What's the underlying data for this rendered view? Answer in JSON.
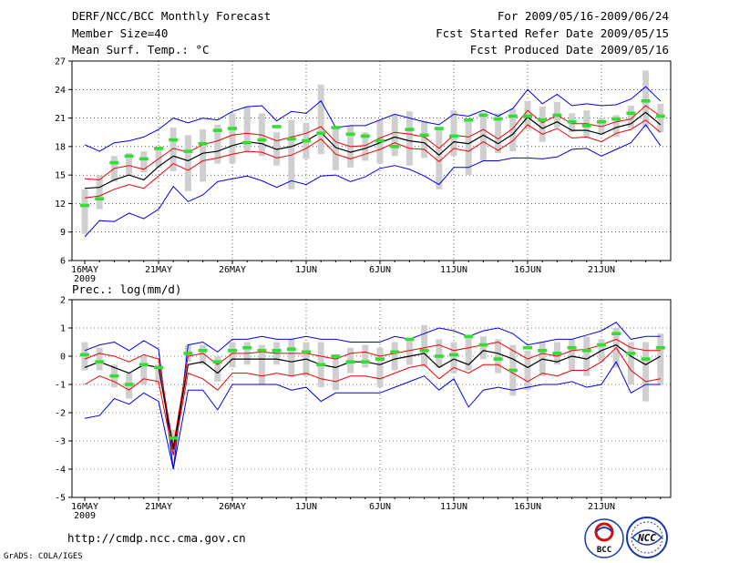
{
  "header": {
    "title": "DERF/NCC/BCC Monthly Forecast",
    "member_size": "Member Size=40",
    "variable": "Mean Surf. Temp.: °C",
    "period": "For 2009/05/16-2009/06/24",
    "started": "Fcst Started Refer Date 2009/05/15",
    "produced": "Fcst Produced Date 2009/05/16"
  },
  "footer": {
    "url": "http://cmdp.ncc.cma.gov.cn",
    "credit": "GrADS: COLA/IGES",
    "logo_bcc": "BCC",
    "logo_ncc": "NCC"
  },
  "colors": {
    "ensemble_max_min": "#0000ee",
    "ensemble_spread": "#ee0000",
    "ensemble_mean": "#000000",
    "member_range": "#cfcfcf",
    "median_marker": "#33dd33"
  },
  "chart_data": [
    {
      "type": "line",
      "title": "Mean Surf. Temp.: °C",
      "x_tick_labels": [
        "16MAY",
        "21MAY",
        "26MAY",
        "1JUN",
        "6JUN",
        "11JUN",
        "16JUN",
        "21JUN"
      ],
      "x_year_label": "2009",
      "ylim": [
        6,
        27
      ],
      "y_ticks": [
        6,
        9,
        12,
        15,
        18,
        21,
        24,
        27
      ],
      "days": 40,
      "series": [
        {
          "name": "max",
          "values": [
            18.2,
            17.5,
            18.4,
            18.6,
            19.0,
            19.8,
            21.0,
            20.5,
            21.0,
            20.8,
            21.7,
            22.2,
            22.3,
            20.7,
            21.7,
            21.5,
            22.8,
            20.0,
            20.2,
            20.2,
            20.8,
            21.4,
            21.0,
            20.6,
            20.3,
            21.4,
            21.2,
            21.8,
            21.2,
            22.0,
            24.0,
            22.5,
            23.5,
            22.3,
            22.5,
            22.3,
            22.4,
            23.0,
            24.3,
            22.8
          ]
        },
        {
          "name": "upper",
          "values": [
            14.6,
            14.5,
            15.7,
            16.0,
            15.6,
            16.7,
            17.8,
            17.4,
            18.2,
            18.6,
            19.2,
            19.4,
            19.2,
            18.6,
            19.0,
            19.4,
            20.1,
            18.5,
            18.0,
            18.1,
            18.9,
            19.5,
            19.3,
            19.0,
            17.8,
            19.2,
            19.0,
            19.8,
            18.8,
            19.9,
            21.8,
            20.5,
            21.3,
            20.4,
            20.4,
            20.1,
            20.6,
            20.9,
            22.3,
            21.2
          ]
        },
        {
          "name": "mean",
          "values": [
            13.6,
            13.7,
            14.5,
            15.0,
            14.5,
            15.9,
            17.0,
            16.5,
            17.3,
            17.5,
            18.1,
            18.5,
            18.3,
            17.7,
            18.0,
            18.6,
            19.5,
            17.9,
            17.4,
            17.8,
            18.4,
            19.0,
            18.6,
            18.4,
            17.1,
            18.5,
            18.3,
            19.2,
            18.3,
            19.3,
            21.1,
            19.9,
            20.6,
            19.7,
            19.7,
            19.3,
            20.0,
            20.4,
            21.6,
            20.3
          ]
        },
        {
          "name": "lower",
          "values": [
            12.6,
            12.8,
            13.5,
            14.0,
            13.6,
            14.9,
            16.2,
            15.5,
            16.5,
            16.8,
            17.2,
            17.5,
            17.4,
            16.8,
            17.1,
            17.8,
            18.8,
            17.2,
            16.7,
            17.2,
            17.7,
            18.4,
            17.8,
            17.7,
            16.4,
            17.8,
            17.5,
            18.5,
            17.6,
            18.6,
            20.3,
            19.3,
            19.9,
            18.9,
            19.0,
            18.5,
            19.4,
            19.8,
            20.8,
            19.5
          ]
        },
        {
          "name": "min",
          "values": [
            8.5,
            10.2,
            10.1,
            11.0,
            10.4,
            11.4,
            13.8,
            12.2,
            12.9,
            14.3,
            14.6,
            14.9,
            14.4,
            13.7,
            14.4,
            14.0,
            14.9,
            15.0,
            14.3,
            14.8,
            15.7,
            16.0,
            15.6,
            14.9,
            14.0,
            15.8,
            15.8,
            16.5,
            16.5,
            16.8,
            16.8,
            16.7,
            16.9,
            17.7,
            17.8,
            17.0,
            17.7,
            18.4,
            20.3,
            18.1
          ]
        },
        {
          "name": "member_range_high",
          "values": [
            13.5,
            15.0,
            17.0,
            17.3,
            17.5,
            18.0,
            20.0,
            19.2,
            19.8,
            20.3,
            21.5,
            22.2,
            21.5,
            19.5,
            20.8,
            20.5,
            24.5,
            20.0,
            20.2,
            19.5,
            20.8,
            21.4,
            21.7,
            20.7,
            20.0,
            21.8,
            20.8,
            21.6,
            21.5,
            22.0,
            22.8,
            22.2,
            22.7,
            21.5,
            21.8,
            21.0,
            21.3,
            22.3,
            26.0,
            22.5
          ]
        },
        {
          "name": "member_range_low",
          "values": [
            8.8,
            11.4,
            14.3,
            15.0,
            15.3,
            15.8,
            15.4,
            13.3,
            14.3,
            16.2,
            16.2,
            17.5,
            17.0,
            16.0,
            13.5,
            16.7,
            17.2,
            15.5,
            15.8,
            16.5,
            16.2,
            17.0,
            16.0,
            16.8,
            13.5,
            17.0,
            15.0,
            16.5,
            17.3,
            17.5,
            19.8,
            18.5,
            20.0,
            19.5,
            19.0,
            19.2,
            19.0,
            20.0,
            20.0,
            19.5
          ]
        },
        {
          "name": "median",
          "values": [
            11.8,
            12.5,
            16.3,
            17.0,
            16.7,
            17.8,
            18.7,
            17.5,
            18.3,
            19.7,
            19.9,
            18.4,
            18.7,
            20.1,
            18.8,
            18.6,
            19.4,
            20.0,
            19.3,
            19.1,
            18.6,
            18.0,
            19.8,
            19.2,
            19.9,
            19.1,
            20.8,
            21.3,
            20.9,
            21.2,
            21.2,
            20.8,
            21.3,
            20.6,
            20.2,
            20.6,
            20.9,
            21.5,
            22.8,
            21.2
          ]
        }
      ]
    },
    {
      "type": "line",
      "title": "Prec.: log(mm/d)",
      "x_tick_labels": [
        "16MAY",
        "21MAY",
        "26MAY",
        "1JUN",
        "6JUN",
        "11JUN",
        "16JUN",
        "21JUN"
      ],
      "x_year_label": "2009",
      "ylim": [
        -5,
        2
      ],
      "y_ticks": [
        -5,
        -4,
        -3,
        -2,
        -1,
        0,
        1,
        2
      ],
      "days": 40,
      "series": [
        {
          "name": "max",
          "values": [
            0.2,
            0.4,
            0.5,
            0.2,
            0.55,
            0.25,
            -4.0,
            0.4,
            0.5,
            0.15,
            0.6,
            0.6,
            0.7,
            0.6,
            0.6,
            0.7,
            0.6,
            0.6,
            0.5,
            0.5,
            0.5,
            0.7,
            0.6,
            0.8,
            1.0,
            0.9,
            0.7,
            0.9,
            1.0,
            0.8,
            0.4,
            0.5,
            0.6,
            0.6,
            0.75,
            0.9,
            1.2,
            0.6,
            0.7,
            0.7
          ]
        },
        {
          "name": "upper",
          "values": [
            -0.1,
            0.1,
            0.0,
            -0.2,
            0.05,
            -0.1,
            -3.2,
            0.0,
            0.1,
            -0.3,
            0.1,
            0.1,
            0.15,
            0.1,
            0.1,
            0.1,
            0.0,
            -0.1,
            0.1,
            0.15,
            0.0,
            0.1,
            0.2,
            0.3,
            0.4,
            0.2,
            0.3,
            0.4,
            0.5,
            0.2,
            -0.1,
            0.1,
            0.0,
            0.2,
            0.25,
            0.4,
            0.6,
            0.3,
            0.2,
            0.2
          ]
        },
        {
          "name": "mean",
          "values": [
            -0.4,
            -0.2,
            -0.4,
            -0.6,
            -0.3,
            -0.4,
            -3.3,
            -0.3,
            -0.2,
            -0.6,
            -0.1,
            -0.1,
            -0.1,
            -0.1,
            -0.2,
            -0.1,
            -0.3,
            -0.4,
            -0.2,
            -0.2,
            -0.3,
            -0.1,
            0.0,
            0.1,
            -0.4,
            -0.1,
            -0.3,
            0.2,
            0.1,
            -0.1,
            -0.4,
            -0.1,
            -0.2,
            0.0,
            -0.1,
            0.2,
            0.4,
            0.0,
            -0.3,
            0.0
          ]
        },
        {
          "name": "lower",
          "values": [
            -1.0,
            -0.7,
            -0.9,
            -1.2,
            -0.8,
            -0.9,
            -3.5,
            -0.6,
            -0.8,
            -1.2,
            -0.6,
            -0.6,
            -0.7,
            -0.6,
            -0.7,
            -0.6,
            -0.8,
            -0.9,
            -0.7,
            -0.7,
            -0.8,
            -0.6,
            -0.4,
            -0.3,
            -0.8,
            -0.4,
            -0.6,
            -0.3,
            -0.3,
            -0.6,
            -0.9,
            -0.6,
            -0.7,
            -0.5,
            -0.5,
            -0.2,
            0.3,
            -0.5,
            -0.9,
            -0.8
          ]
        },
        {
          "name": "min",
          "values": [
            -2.2,
            -2.1,
            -1.5,
            -1.7,
            -1.3,
            -1.6,
            -4.0,
            -1.2,
            -1.2,
            -1.9,
            -1.0,
            -1.0,
            -1.0,
            -1.0,
            -1.2,
            -1.1,
            -1.6,
            -1.3,
            -1.3,
            -1.3,
            -1.3,
            -1.1,
            -0.9,
            -0.7,
            -1.2,
            -0.8,
            -1.8,
            -1.2,
            -1.1,
            -1.2,
            -1.1,
            -1.0,
            -1.0,
            -0.9,
            -1.1,
            -1.0,
            -0.2,
            -1.3,
            -1.0,
            -1.0
          ]
        },
        {
          "name": "member_range_high",
          "values": [
            0.5,
            0.3,
            -0.3,
            -0.6,
            0.0,
            -0.3,
            -2.6,
            0.4,
            0.4,
            0.0,
            0.5,
            0.5,
            0.4,
            0.5,
            0.6,
            0.5,
            0.5,
            0.0,
            0.3,
            0.4,
            0.3,
            0.5,
            0.6,
            1.1,
            0.6,
            0.5,
            0.7,
            0.7,
            0.6,
            0.4,
            0.2,
            0.5,
            0.5,
            0.6,
            0.7,
            0.6,
            1.0,
            0.5,
            0.5,
            0.8
          ]
        },
        {
          "name": "member_range_low",
          "values": [
            -0.5,
            -0.5,
            -1.1,
            -1.5,
            -1.0,
            -1.0,
            -3.5,
            -0.2,
            -0.3,
            -0.9,
            -0.4,
            -0.3,
            -1.0,
            -0.3,
            -0.7,
            -0.7,
            -1.1,
            -1.2,
            -0.6,
            -0.4,
            -1.1,
            -0.5,
            -0.3,
            -0.4,
            -0.4,
            -0.6,
            -0.5,
            -0.1,
            -0.6,
            -1.4,
            -1.2,
            -0.7,
            -0.3,
            -0.5,
            -0.7,
            -0.2,
            -0.4,
            -1.0,
            -1.6,
            -1.0
          ]
        },
        {
          "name": "median",
          "values": [
            0.05,
            -0.2,
            -0.7,
            -1.0,
            -0.3,
            -0.4,
            -2.9,
            0.1,
            0.2,
            -0.2,
            0.2,
            0.3,
            0.2,
            0.2,
            0.25,
            0.15,
            -0.3,
            0.0,
            -0.2,
            -0.2,
            -0.1,
            0.15,
            0.6,
            0.2,
            0.0,
            0.05,
            0.7,
            0.4,
            -0.1,
            -0.5,
            0.3,
            0.2,
            0.1,
            0.3,
            0.2,
            0.4,
            0.8,
            0.1,
            -0.1,
            0.3
          ]
        }
      ]
    }
  ]
}
